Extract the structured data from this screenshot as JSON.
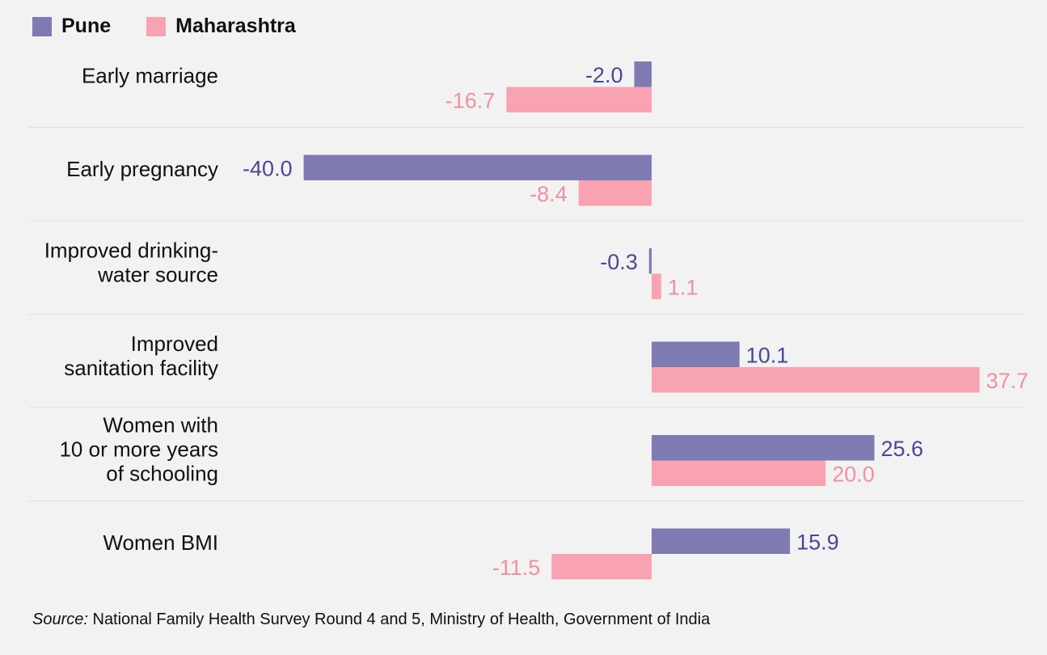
{
  "legend": [
    {
      "label": "Pune",
      "color": "#7e7bb3"
    },
    {
      "label": "Maharashtra",
      "color": "#f9a3b2"
    }
  ],
  "source": {
    "prefix": "Source:",
    "text": " National Family Health Survey Round 4 and 5, Ministry of Health, Government of India"
  },
  "colors": {
    "pune_bar": "#7e7bb3",
    "pune_text": "#4b4794",
    "maharashtra_bar": "#f9a3b2",
    "maharashtra_text": "#f08fa0",
    "divider": "#e0e0e0"
  },
  "chart_data": {
    "type": "bar",
    "orientation": "horizontal",
    "categories": [
      [
        "Early marriage"
      ],
      [
        "Early pregnancy"
      ],
      [
        "Improved drinking-",
        "water source"
      ],
      [
        "Improved",
        "sanitation facility"
      ],
      [
        "Women with",
        "10 or more years",
        "of schooling"
      ],
      [
        "Women BMI"
      ]
    ],
    "series": [
      {
        "name": "Pune",
        "values": [
          -2.0,
          -40.0,
          -0.3,
          10.1,
          25.6,
          15.9
        ],
        "labels": [
          "-2.0",
          "-40.0",
          "-0.3",
          "10.1",
          "25.6",
          "15.9"
        ]
      },
      {
        "name": "Maharashtra",
        "values": [
          -16.7,
          -8.4,
          1.1,
          37.7,
          20.0,
          -11.5
        ],
        "labels": [
          "-16.7",
          "-8.4",
          "1.1",
          "37.7",
          "20.0",
          "-11.5"
        ]
      }
    ],
    "title": "",
    "xlabel": "",
    "ylabel": "",
    "xlim": [
      -40,
      37.7
    ],
    "grid": false,
    "legend_position": "top-left"
  }
}
